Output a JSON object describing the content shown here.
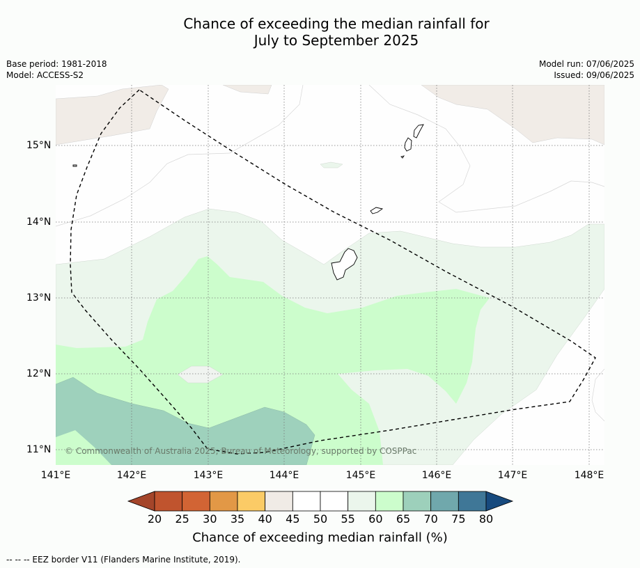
{
  "title_line1": "Chance of exceeding the median rainfall for",
  "title_line2": "July to September 2025",
  "meta_left": {
    "base_period": "Base period: 1981-2018",
    "model": "Model: ACCESS-S2"
  },
  "meta_right": {
    "model_run": "Model run: 07/06/2025",
    "issued": "Issued: 09/06/2025"
  },
  "x_ticks": [
    "141°E",
    "142°E",
    "143°E",
    "144°E",
    "145°E",
    "146°E",
    "147°E",
    "148°E"
  ],
  "y_ticks": [
    "15°N",
    "14°N",
    "13°N",
    "12°N",
    "11°N"
  ],
  "copyright": "© Commonwealth of Australia 2025, Bureau of Meteorology, supported by COSPPac",
  "colorbar": {
    "labels": [
      "20",
      "25",
      "30",
      "35",
      "40",
      "45",
      "50",
      "55",
      "60",
      "65",
      "70",
      "75",
      "80"
    ],
    "colors": [
      "#a4452a",
      "#c0542e",
      "#d26434",
      "#e29846",
      "#fbcb66",
      "#f0ebe6",
      "#ffffff",
      "#ffffff",
      "#ebf6ec",
      "#ccfdcc",
      "#9dd0bb",
      "#70a8ac",
      "#3f7797",
      "#174a7e"
    ],
    "title": "Chance of exceeding median rainfall (%)"
  },
  "footnote": "--  --  -- EEZ border V11 (Flanders Marine Institute, 2019)."
}
